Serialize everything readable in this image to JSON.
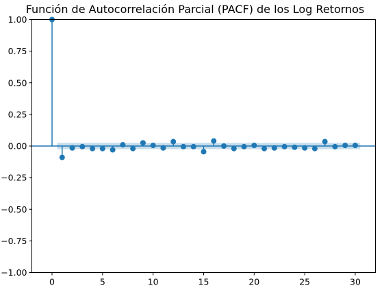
{
  "chart_data": {
    "type": "scatter",
    "title": "Función de Autocorrelación Parcial (PACF) de los Log Retornos",
    "xlabel": "",
    "ylabel": "",
    "xlim": [
      -2,
      32
    ],
    "ylim": [
      -1.0,
      1.0
    ],
    "x_ticks": [
      0,
      5,
      10,
      15,
      20,
      25,
      30
    ],
    "x_tick_labels": [
      "0",
      "5",
      "10",
      "15",
      "20",
      "25",
      "30"
    ],
    "y_ticks": [
      1.0,
      0.75,
      0.5,
      0.25,
      0.0,
      -0.25,
      -0.5,
      -0.75,
      -1.0
    ],
    "y_tick_labels": [
      "1.00",
      "0.75",
      "0.50",
      "0.25",
      "0.00",
      "−0.25",
      "−0.50",
      "−0.75",
      "−1.00"
    ],
    "grid": false,
    "confidence_band": [
      -0.025,
      0.025
    ],
    "x": [
      0,
      1,
      2,
      3,
      4,
      5,
      6,
      7,
      8,
      9,
      10,
      11,
      12,
      13,
      14,
      15,
      16,
      17,
      18,
      19,
      20,
      21,
      22,
      23,
      24,
      25,
      26,
      27,
      28,
      29,
      30
    ],
    "values": [
      1.0,
      -0.09,
      -0.015,
      -0.005,
      -0.02,
      -0.02,
      -0.03,
      0.01,
      -0.02,
      0.025,
      0.005,
      -0.015,
      0.035,
      -0.005,
      -0.005,
      -0.045,
      0.04,
      0.0,
      -0.02,
      -0.005,
      0.005,
      -0.02,
      -0.015,
      -0.005,
      -0.01,
      -0.015,
      -0.02,
      0.035,
      -0.005,
      0.005,
      0.005
    ],
    "colors": {
      "marker": "#1f77b4",
      "band": "#1f77b4",
      "axis": "#000000"
    }
  }
}
